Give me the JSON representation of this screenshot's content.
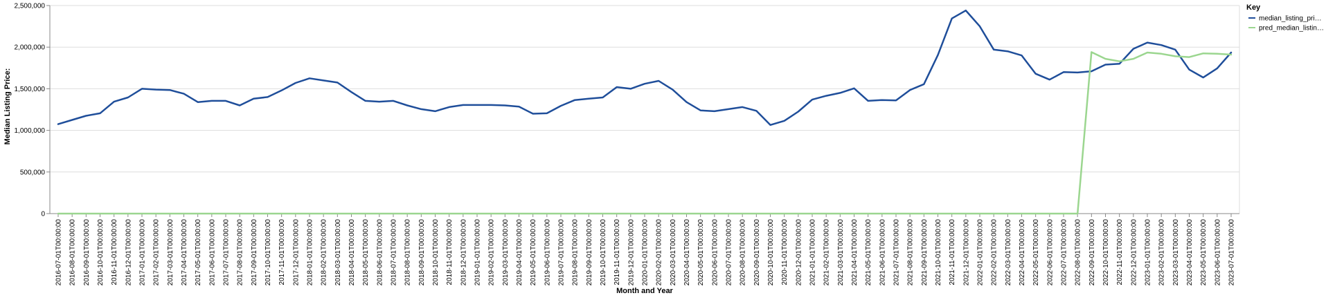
{
  "chart_data": {
    "type": "line",
    "title": "",
    "xlabel": "Month and Year",
    "ylabel": "Median Listing Price:",
    "ylim": [
      0,
      2500000
    ],
    "yticks": [
      0,
      500000,
      1000000,
      1500000,
      2000000,
      2500000
    ],
    "ytick_labels": [
      "0",
      "500,000",
      "1,000,000",
      "1,500,000",
      "2,000,000",
      "2,500,000"
    ],
    "grid": true,
    "legend": {
      "title": "Key",
      "position": "top-right",
      "entries": [
        {
          "label": "median_listing_pri…",
          "color": "#1f4e9a"
        },
        {
          "label": "pred_median_listin…",
          "color": "#9bd68f"
        }
      ]
    },
    "categories": [
      "2016-07-01T00:00:00",
      "2016-08-01T00:00:00",
      "2016-09-01T00:00:00",
      "2016-10-01T00:00:00",
      "2016-11-01T00:00:00",
      "2016-12-01T00:00:00",
      "2017-01-01T00:00:00",
      "2017-02-01T00:00:00",
      "2017-03-01T00:00:00",
      "2017-04-01T00:00:00",
      "2017-05-01T00:00:00",
      "2017-06-01T00:00:00",
      "2017-07-01T00:00:00",
      "2017-08-01T00:00:00",
      "2017-09-01T00:00:00",
      "2017-10-01T00:00:00",
      "2017-11-01T00:00:00",
      "2017-12-01T00:00:00",
      "2018-01-01T00:00:00",
      "2018-02-01T00:00:00",
      "2018-03-01T00:00:00",
      "2018-04-01T00:00:00",
      "2018-05-01T00:00:00",
      "2018-06-01T00:00:00",
      "2018-07-01T00:00:00",
      "2018-08-01T00:00:00",
      "2018-09-01T00:00:00",
      "2018-10-01T00:00:00",
      "2018-11-01T00:00:00",
      "2018-12-01T00:00:00",
      "2019-01-01T00:00:00",
      "2019-02-01T00:00:00",
      "2019-03-01T00:00:00",
      "2019-04-01T00:00:00",
      "2019-05-01T00:00:00",
      "2019-06-01T00:00:00",
      "2019-07-01T00:00:00",
      "2019-08-01T00:00:00",
      "2019-09-01T00:00:00",
      "2019-10-01T00:00:00",
      "2019-11-01T00:00:00",
      "2019-12-01T00:00:00",
      "2020-01-01T00:00:00",
      "2020-02-01T00:00:00",
      "2020-03-01T00:00:00",
      "2020-04-01T00:00:00",
      "2020-05-01T00:00:00",
      "2020-06-01T00:00:00",
      "2020-07-01T00:00:00",
      "2020-08-01T00:00:00",
      "2020-09-01T00:00:00",
      "2020-10-01T00:00:00",
      "2020-11-01T00:00:00",
      "2020-12-01T00:00:00",
      "2021-01-01T00:00:00",
      "2021-02-01T00:00:00",
      "2021-03-01T00:00:00",
      "2021-04-01T00:00:00",
      "2021-05-01T00:00:00",
      "2021-06-01T00:00:00",
      "2021-07-01T00:00:00",
      "2021-08-01T00:00:00",
      "2021-09-01T00:00:00",
      "2021-10-01T00:00:00",
      "2021-11-01T00:00:00",
      "2021-12-01T00:00:00",
      "2022-01-01T00:00:00",
      "2022-02-01T00:00:00",
      "2022-03-01T00:00:00",
      "2022-04-01T00:00:00",
      "2022-05-01T00:00:00",
      "2022-06-01T00:00:00",
      "2022-07-01T00:00:00",
      "2022-08-01T00:00:00",
      "2022-09-01T00:00:00",
      "2022-10-01T00:00:00",
      "2022-11-01T00:00:00",
      "2022-12-01T00:00:00",
      "2023-01-01T00:00:00",
      "2023-02-01T00:00:00",
      "2023-03-01T00:00:00",
      "2023-04-01T00:00:00",
      "2023-05-01T00:00:00",
      "2023-06-01T00:00:00",
      "2023-07-01T00:00:00"
    ],
    "series": [
      {
        "name": "median_listing_price",
        "color": "#1f4e9a",
        "values": [
          1075000,
          1125000,
          1175000,
          1205000,
          1345000,
          1395000,
          1500000,
          1490000,
          1485000,
          1440000,
          1340000,
          1355000,
          1355000,
          1300000,
          1380000,
          1400000,
          1480000,
          1570000,
          1625000,
          1600000,
          1575000,
          1460000,
          1355000,
          1345000,
          1355000,
          1300000,
          1255000,
          1230000,
          1280000,
          1305000,
          1305000,
          1305000,
          1300000,
          1285000,
          1200000,
          1205000,
          1295000,
          1365000,
          1380000,
          1395000,
          1520000,
          1500000,
          1560000,
          1595000,
          1490000,
          1340000,
          1240000,
          1230000,
          1255000,
          1280000,
          1235000,
          1065000,
          1115000,
          1225000,
          1370000,
          1415000,
          1450000,
          1505000,
          1355000,
          1365000,
          1360000,
          1485000,
          1555000,
          1905000,
          2345000,
          2440000,
          2250000,
          1970000,
          1950000,
          1900000,
          1680000,
          1610000,
          1700000,
          1695000,
          1710000,
          1790000,
          1800000,
          1980000,
          2055000,
          2025000,
          1970000,
          1730000,
          1635000,
          1745000,
          1935000
        ]
      },
      {
        "name": "pred_median_listing_price",
        "color": "#9bd68f",
        "values": [
          0,
          0,
          0,
          0,
          0,
          0,
          0,
          0,
          0,
          0,
          0,
          0,
          0,
          0,
          0,
          0,
          0,
          0,
          0,
          0,
          0,
          0,
          0,
          0,
          0,
          0,
          0,
          0,
          0,
          0,
          0,
          0,
          0,
          0,
          0,
          0,
          0,
          0,
          0,
          0,
          0,
          0,
          0,
          0,
          0,
          0,
          0,
          0,
          0,
          0,
          0,
          0,
          0,
          0,
          0,
          0,
          0,
          0,
          0,
          0,
          0,
          0,
          0,
          0,
          0,
          0,
          0,
          0,
          0,
          0,
          0,
          0,
          0,
          0,
          1940000,
          1860000,
          1830000,
          1860000,
          1935000,
          1920000,
          1890000,
          1880000,
          1925000,
          1920000,
          1910000
        ]
      }
    ]
  }
}
